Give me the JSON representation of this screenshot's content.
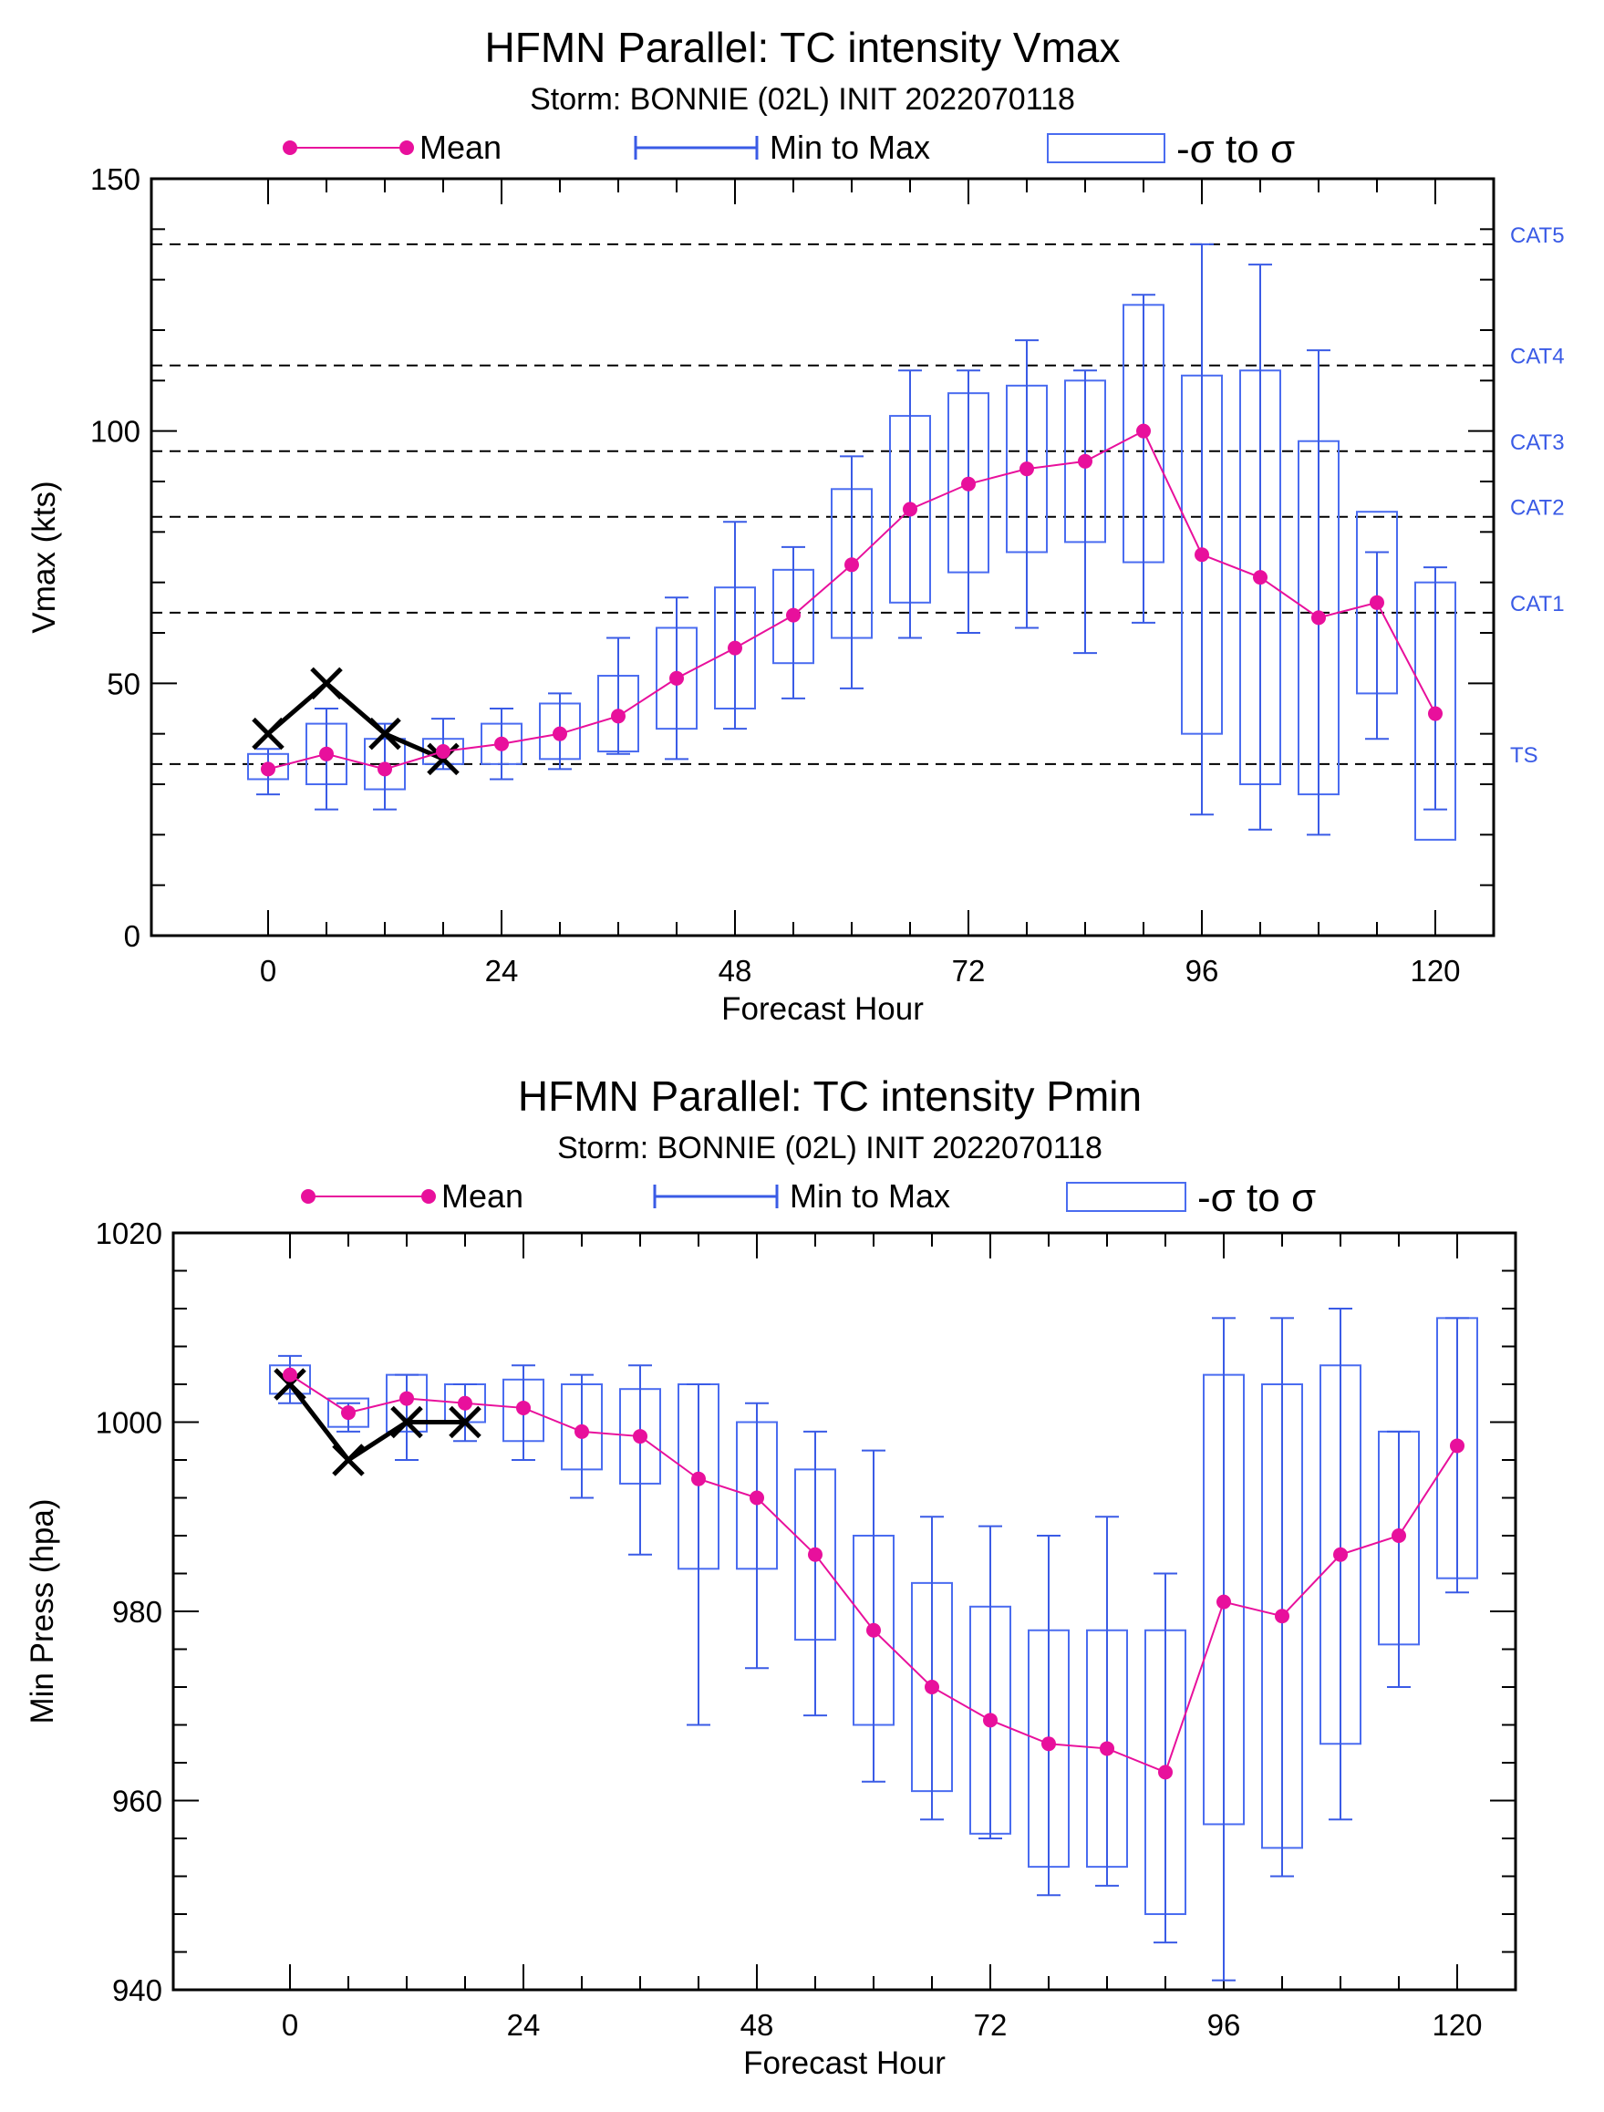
{
  "colors": {
    "mean": "#e8109c",
    "minmax": "#3a5be6",
    "box": "#4a6cf0",
    "observed": "#000000",
    "category_label": "#3a5be6"
  },
  "legend": {
    "mean": "Mean",
    "minmax": "Min to Max",
    "sigma": "-σ to σ"
  },
  "chart_data": [
    {
      "type": "box",
      "title": "HFMN Parallel: TC intensity Vmax",
      "subtitle": "Storm: BONNIE (02L) INIT 2022070118",
      "xlabel": "Forecast Hour",
      "ylabel": "Vmax (kts)",
      "xlim": [
        -12,
        126
      ],
      "ylim": [
        0,
        150
      ],
      "xticks": [
        "0",
        "24",
        "48",
        "72",
        "96",
        "120"
      ],
      "yticks": [
        "0",
        "50",
        "100",
        "150"
      ],
      "category_lines": [
        {
          "label": "TS",
          "value": 34
        },
        {
          "label": "CAT1",
          "value": 64
        },
        {
          "label": "CAT2",
          "value": 83
        },
        {
          "label": "CAT3",
          "value": 96
        },
        {
          "label": "CAT4",
          "value": 113
        },
        {
          "label": "CAT5",
          "value": 137
        }
      ],
      "x": [
        0,
        6,
        12,
        18,
        24,
        30,
        36,
        42,
        48,
        54,
        60,
        66,
        72,
        78,
        84,
        90,
        96,
        102,
        108,
        114,
        120
      ],
      "mean": [
        33,
        36,
        33,
        36.5,
        38,
        40,
        43.5,
        51,
        57,
        63.5,
        73.5,
        84.5,
        89.5,
        92.5,
        94,
        100,
        75.5,
        71,
        63,
        66,
        44
      ],
      "min": [
        28,
        25,
        25,
        33,
        31,
        33,
        36,
        35,
        41,
        47,
        49,
        59,
        60,
        61,
        56,
        62,
        24,
        21,
        20,
        39,
        25
      ],
      "max": [
        37,
        45,
        42,
        43,
        45,
        48,
        59,
        67,
        82,
        77,
        95,
        112,
        112,
        118,
        112,
        127,
        137,
        133,
        116,
        76,
        73
      ],
      "sigma_low": [
        31,
        30,
        29,
        34,
        34,
        35,
        36.5,
        41,
        45,
        54,
        59,
        66,
        72,
        76,
        78,
        74,
        40,
        30,
        28,
        48,
        19
      ],
      "sigma_high": [
        36,
        42,
        39,
        39,
        42,
        46,
        51.5,
        61,
        69,
        72.5,
        88.5,
        103,
        107.5,
        109,
        110,
        125,
        111,
        112,
        98,
        84,
        70
      ],
      "observed": {
        "x": [
          0,
          6,
          12,
          18
        ],
        "values": [
          40,
          50,
          40,
          35
        ]
      }
    },
    {
      "type": "box",
      "title": "HFMN Parallel: TC intensity Pmin",
      "subtitle": "Storm: BONNIE (02L) INIT 2022070118",
      "xlabel": "Forecast Hour",
      "ylabel": "Min Press (hpa)",
      "xlim": [
        -12,
        126
      ],
      "ylim": [
        940,
        1020
      ],
      "xticks": [
        "0",
        "24",
        "48",
        "72",
        "96",
        "120"
      ],
      "yticks": [
        "940",
        "960",
        "980",
        "1000",
        "1020"
      ],
      "x": [
        0,
        6,
        12,
        18,
        24,
        30,
        36,
        42,
        48,
        54,
        60,
        66,
        72,
        78,
        84,
        90,
        96,
        102,
        108,
        114,
        120
      ],
      "mean": [
        1005,
        1001,
        1002.5,
        1002,
        1001.5,
        999,
        998.5,
        994,
        992,
        986,
        978,
        972,
        968.5,
        966,
        965.5,
        963,
        981,
        979.5,
        986,
        988,
        997.5
      ],
      "min": [
        1002,
        999,
        996,
        998,
        996,
        992,
        986,
        968,
        974,
        969,
        962,
        958,
        956,
        950,
        951,
        945,
        941,
        952,
        958,
        972,
        982
      ],
      "max": [
        1007,
        1002,
        1005,
        1004,
        1006,
        1005,
        1006,
        1004,
        1002,
        999,
        997,
        990,
        989,
        988,
        990,
        984,
        1011,
        1011,
        1012,
        999,
        1011
      ],
      "sigma_low": [
        1003,
        999.5,
        999,
        1000,
        998,
        995,
        993.5,
        984.5,
        984.5,
        977,
        968,
        961,
        956.5,
        953,
        953,
        948,
        957.5,
        955,
        966,
        976.5,
        983.5
      ],
      "sigma_high": [
        1006,
        1002.5,
        1005,
        1004,
        1004.5,
        1004,
        1003.5,
        1004,
        1000,
        995,
        988,
        983,
        980.5,
        978,
        978,
        978,
        1005,
        1004,
        1006,
        999,
        1011
      ],
      "observed": {
        "x": [
          0,
          6,
          12,
          18
        ],
        "values": [
          1004,
          996,
          1000,
          1000
        ]
      }
    }
  ]
}
